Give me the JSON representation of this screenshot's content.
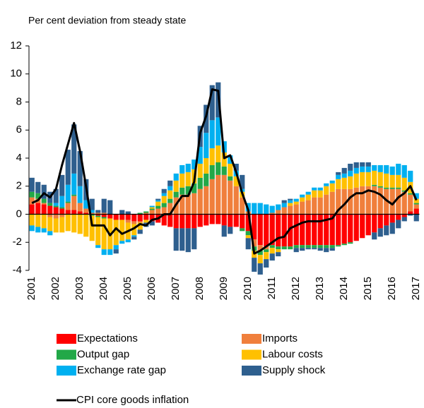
{
  "chart_data": {
    "type": "bar",
    "stacked": true,
    "subtitle": "Per cent deviation from steady state",
    "categories": [
      "2001",
      null,
      null,
      null,
      "2002",
      null,
      null,
      null,
      "2003",
      null,
      null,
      null,
      "2004",
      null,
      null,
      null,
      "2005",
      null,
      null,
      null,
      "2006",
      null,
      null,
      null,
      "2007",
      null,
      null,
      null,
      "2008",
      null,
      null,
      null,
      "2009",
      null,
      null,
      null,
      "2010",
      null,
      null,
      null,
      "2011",
      null,
      null,
      null,
      "2012",
      null,
      null,
      null,
      "2013",
      null,
      null,
      null,
      "2014",
      null,
      null,
      null,
      "2015",
      null,
      null,
      null,
      "2016",
      null,
      null,
      null,
      "2017"
    ],
    "ylim": [
      -4,
      12
    ],
    "yticks": [
      -4,
      -2,
      0,
      2,
      4,
      6,
      8,
      10,
      12
    ],
    "series": [
      {
        "name": "Expectations",
        "color": "#ff0000",
        "values": [
          0.7,
          0.8,
          0.7,
          0.6,
          0.5,
          0.4,
          0.3,
          0.3,
          0.2,
          0.1,
          0,
          -0.1,
          -0.2,
          -0.3,
          -0.4,
          -0.4,
          -0.4,
          -0.5,
          -0.5,
          -0.4,
          -0.5,
          -0.6,
          -0.8,
          -0.9,
          -1.0,
          -1.0,
          -1.0,
          -1.0,
          -0.9,
          -0.8,
          -0.7,
          -0.7,
          -0.8,
          -0.9,
          -0.9,
          -1.0,
          -1.2,
          -1.8,
          -2.2,
          -2.3,
          -2.2,
          -2.3,
          -2.3,
          -2.3,
          -2.2,
          -2.2,
          -2.2,
          -2.2,
          -2.2,
          -2.2,
          -2.2,
          -2.2,
          -2.1,
          -2.0,
          -1.9,
          -1.7,
          -1.5,
          -1.3,
          -1.0,
          -0.8,
          -0.6,
          -0.4,
          -0.2,
          0.2,
          0.4
        ]
      },
      {
        "name": "Imports",
        "color": "#f07f3c",
        "values": [
          0.5,
          0.3,
          0.1,
          -0.2,
          -0.3,
          -0.2,
          0.5,
          1.0,
          0.6,
          0.3,
          0.1,
          0.1,
          0.1,
          0,
          0,
          0,
          -0.2,
          -0.2,
          -0.1,
          0.1,
          0.3,
          0.4,
          0.5,
          0.8,
          1.2,
          1.4,
          1.4,
          1.5,
          1.8,
          2.0,
          2.5,
          2.8,
          2.8,
          2.4,
          2.0,
          1.2,
          0.2,
          -0.5,
          -0.4,
          -0.2,
          0.1,
          0.3,
          0.5,
          0.6,
          0.7,
          0.9,
          1.0,
          1.2,
          1.2,
          1.4,
          1.6,
          1.8,
          1.8,
          1.8,
          1.9,
          2.0,
          2.0,
          2.0,
          1.9,
          1.8,
          1.8,
          1.8,
          1.6,
          1.2,
          0.3
        ]
      },
      {
        "name": "Output gap",
        "color": "#22a848",
        "values": [
          0.4,
          0.4,
          0.3,
          0.2,
          0.1,
          0.1,
          0.1,
          0.1,
          0,
          0,
          -0.1,
          -0.1,
          -0.1,
          0,
          0,
          0,
          0,
          0,
          0.1,
          0.1,
          0.1,
          0.2,
          0.3,
          0.3,
          0.4,
          0.5,
          0.6,
          0.7,
          0.8,
          0.9,
          1.0,
          0.9,
          0.6,
          0.3,
          0,
          -0.2,
          -0.3,
          -0.3,
          -0.3,
          -0.2,
          -0.2,
          -0.2,
          -0.2,
          -0.2,
          -0.2,
          -0.2,
          -0.2,
          -0.2,
          -0.2,
          -0.2,
          -0.2,
          -0.1,
          -0.1,
          -0.1,
          0,
          0,
          0,
          0.1,
          0.1,
          0.1,
          0.1,
          0.1,
          0.1,
          0.1,
          0.1
        ]
      },
      {
        "name": "Labour costs",
        "color": "#ffc000",
        "values": [
          -0.8,
          -0.9,
          -1.0,
          -1.0,
          -1.0,
          -1.1,
          -1.2,
          -1.3,
          -1.4,
          -1.6,
          -1.8,
          -2.0,
          -2.2,
          -2.2,
          -1.8,
          -1.5,
          -1.2,
          -0.8,
          -0.5,
          -0.2,
          0.1,
          0.3,
          0.5,
          0.6,
          0.8,
          1.0,
          1.0,
          1.0,
          1.0,
          1.1,
          1.2,
          1.2,
          1.0,
          0.9,
          0.7,
          0.4,
          -0.2,
          -0.5,
          -0.6,
          -0.5,
          -0.4,
          -0.2,
          0,
          0.2,
          0.2,
          0.3,
          0.4,
          0.5,
          0.5,
          0.6,
          0.6,
          0.7,
          0.8,
          0.9,
          1.0,
          1.0,
          1.0,
          1.0,
          1.0,
          1.0,
          0.9,
          0.9,
          0.9,
          0.8,
          0.3
        ]
      },
      {
        "name": "Exchange rate gap",
        "color": "#00b0f0",
        "values": [
          -0.4,
          -0.4,
          -0.3,
          -0.3,
          0.2,
          0.8,
          1.2,
          1.5,
          1.2,
          0.6,
          0.2,
          -0.2,
          -0.4,
          -0.4,
          -0.3,
          -0.2,
          -0.2,
          -0.1,
          0,
          0,
          0.1,
          0.1,
          0.2,
          0.3,
          0.5,
          0.6,
          0.6,
          0.7,
          1.2,
          1.8,
          2.0,
          2.0,
          0.8,
          0.6,
          0.4,
          0.2,
          0.6,
          0.8,
          0.8,
          0.7,
          0.5,
          0.4,
          0.3,
          0.2,
          0.2,
          0.2,
          0.2,
          0.2,
          0.2,
          0.2,
          0.2,
          0.3,
          0.3,
          0.4,
          0.4,
          0.4,
          0.4,
          0.4,
          0.5,
          0.6,
          0.6,
          0.8,
          0.9,
          0.8,
          0.4
        ]
      },
      {
        "name": "Supply shock",
        "color": "#2e5f8e",
        "values": [
          1.0,
          0.8,
          1.0,
          0.8,
          1.0,
          1.5,
          2.5,
          3.5,
          2.5,
          1.5,
          0.8,
          0.2,
          1.0,
          1.0,
          -0.3,
          0.3,
          0.2,
          -0.2,
          -0.3,
          -0.3,
          -0.3,
          0.1,
          0.3,
          0.4,
          -1.6,
          -1.6,
          -1.7,
          -1.5,
          1.5,
          2.0,
          2.5,
          2.5,
          -0.8,
          -0.5,
          0.5,
          1.0,
          -0.8,
          -1.0,
          -0.8,
          -0.6,
          -0.5,
          -0.3,
          0.2,
          0.1,
          -0.3,
          -0.2,
          -0.1,
          -0.1,
          -0.2,
          -0.3,
          -0.2,
          0.2,
          0.4,
          0.5,
          0.4,
          0.3,
          0.3,
          -0.5,
          -0.6,
          -0.7,
          -0.8,
          -0.6,
          -0.3,
          -0.1,
          -0.5
        ]
      },
      {
        "name": "CPI core goods inflation",
        "type": "line",
        "color": "#000000",
        "values": [
          0.8,
          1.0,
          1.5,
          1.2,
          1.8,
          3.5,
          5.0,
          6.5,
          4.5,
          2.0,
          -0.8,
          -0.8,
          -0.8,
          -1.5,
          -1.0,
          -1.4,
          -1.2,
          -1.0,
          -0.7,
          -0.8,
          -0.4,
          -0.3,
          0.0,
          0.0,
          0.7,
          1.3,
          1.3,
          2.3,
          5.8,
          7.0,
          8.9,
          8.8,
          4.0,
          4.2,
          3.0,
          1.5,
          0.3,
          -2.8,
          -2.6,
          -2.3,
          -2.0,
          -1.7,
          -1.6,
          -1.0,
          -0.8,
          -0.6,
          -0.5,
          -0.5,
          -0.5,
          -0.4,
          -0.3,
          0.3,
          0.7,
          1.2,
          1.5,
          1.5,
          1.7,
          1.6,
          1.4,
          1.0,
          0.7,
          1.2,
          1.5,
          2.0,
          1.0
        ]
      }
    ]
  }
}
